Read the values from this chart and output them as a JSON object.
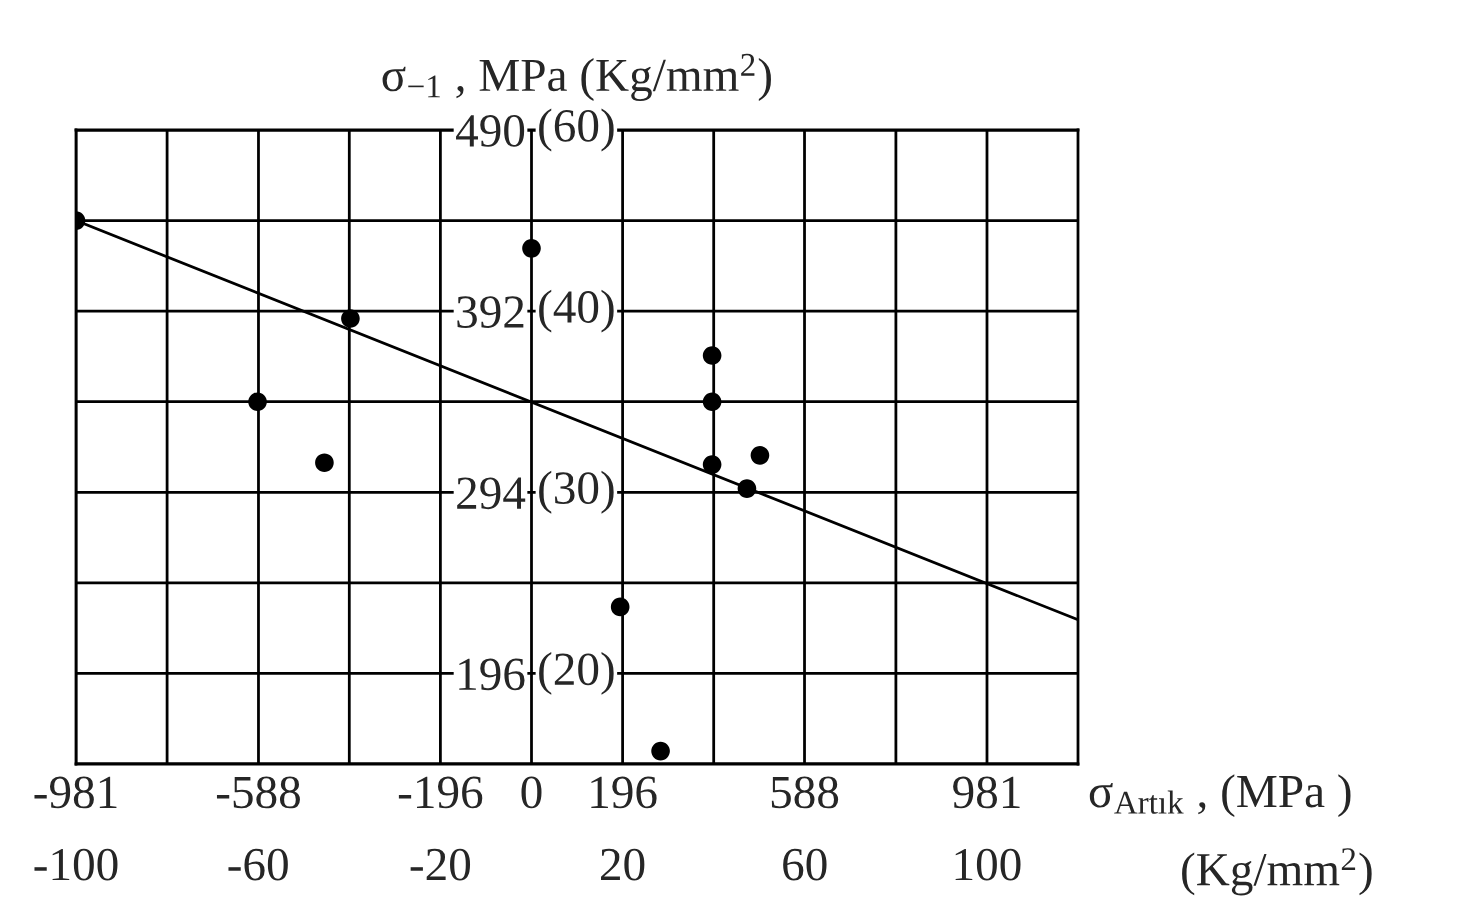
{
  "chart_data": {
    "type": "scatter",
    "title": "σ$_{−1}$ , MPa (Kg/mm$^{2}$)",
    "xlabel": "σ$_{Artık}$ , (MPa )",
    "x2label": "(Kg/mm$^{2}$)",
    "series": [
      {
        "color": "#000000",
        "marker": "circle",
        "x": [
          -981,
          0,
          -390,
          -590,
          -446,
          389,
          389,
          389,
          492,
          464,
          191,
          278
        ],
        "values": [
          441,
          426,
          388,
          343,
          310,
          368,
          343,
          309,
          314,
          296,
          232,
          154
        ]
      },
      {
        "type": "line",
        "color": "#000000",
        "marker": "none",
        "line_style": "solid",
        "x": [
          -981,
          1177
        ],
        "values": [
          441,
          225
        ]
      }
    ],
    "xlim": [
      -981,
      1177
    ],
    "xticks": [
      -981,
      {
        "value": -784.8,
        "label": null
      },
      -588,
      {
        "value": -392.4,
        "label": null
      },
      {
        "value": -196.2,
        "label": "-196"
      },
      0,
      {
        "value": 196.2,
        "label": "196"
      },
      {
        "value": 392.4,
        "label": null
      },
      588,
      {
        "value": 784.8,
        "label": null
      },
      981
    ],
    "x2lim": [
      -100,
      120
    ],
    "x2ticks": [
      -100,
      -60,
      -20,
      20,
      60,
      100
    ],
    "ylim": [
      147,
      490
    ],
    "yticks": [
      490,
      {
        "value": 441,
        "label": null
      },
      392,
      {
        "value": 343,
        "label": null
      },
      294,
      {
        "value": 245,
        "label": null
      },
      196,
      {
        "value": 147,
        "label": null
      }
    ],
    "annotations": [
      "(60)",
      "(40)",
      "(30)",
      "(20)"
    ],
    "grid": true
  }
}
